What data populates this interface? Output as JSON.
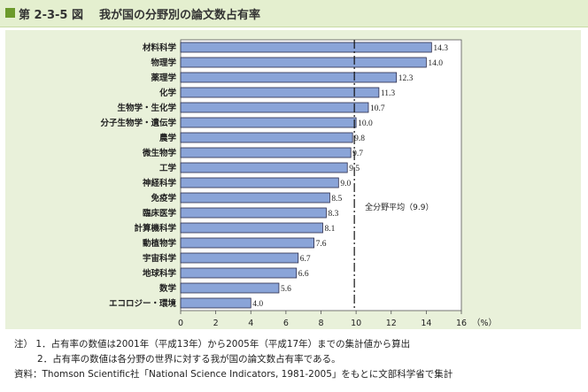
{
  "header": {
    "figure_number": "第 2-3-5 図",
    "title": "我が国の分野別の論文数占有率"
  },
  "chart_data": {
    "type": "bar",
    "orientation": "horizontal",
    "categories": [
      "材料科学",
      "物理学",
      "薬理学",
      "化学",
      "生物学・生化学",
      "分子生物学・遺伝学",
      "農学",
      "微生物学",
      "工学",
      "神経科学",
      "免疫学",
      "臨床医学",
      "計算機科学",
      "動植物学",
      "宇宙科学",
      "地球科学",
      "数学",
      "エコロジー・環境"
    ],
    "values": [
      14.3,
      14.0,
      12.3,
      11.3,
      10.7,
      10.0,
      9.8,
      9.7,
      9.5,
      9.0,
      8.5,
      8.3,
      8.1,
      7.6,
      6.7,
      6.6,
      5.6,
      4.0
    ],
    "value_labels": [
      "14.3",
      "14.0",
      "12.3",
      "11.3",
      "10.7",
      "10.0",
      "9.8",
      "9.7",
      "9.5",
      "9.0",
      "8.5",
      "8.3",
      "8.1",
      "7.6",
      "6.7",
      "6.6",
      "5.6",
      "4.0"
    ],
    "xlim": [
      0,
      16
    ],
    "x_ticks": [
      0,
      2,
      4,
      6,
      8,
      10,
      12,
      14,
      16
    ],
    "x_tick_labels": [
      "0",
      "2",
      "4",
      "6",
      "8",
      "10",
      "12",
      "14",
      "16"
    ],
    "x_unit": "（%）",
    "reference_line": {
      "value": 9.9,
      "label": "全分野平均（9.9）"
    },
    "grid": false,
    "colors": {
      "bar": "#8aa4d8",
      "bar_border": "#2b2b4a",
      "plot_bg": "#ffffff",
      "panel_bg": "#e9f1da"
    }
  },
  "notes": {
    "lines": [
      "注）  1．占有率の数値は2001年（平成13年）から2005年（平成17年）までの集計値から算出",
      "2．占有率の数値は各分野の世界に対する我が国の論文数占有率である。",
      "資料：Thomson Scientific社「National Science Indicators, 1981-2005」をもとに文部科学省で集計"
    ]
  }
}
